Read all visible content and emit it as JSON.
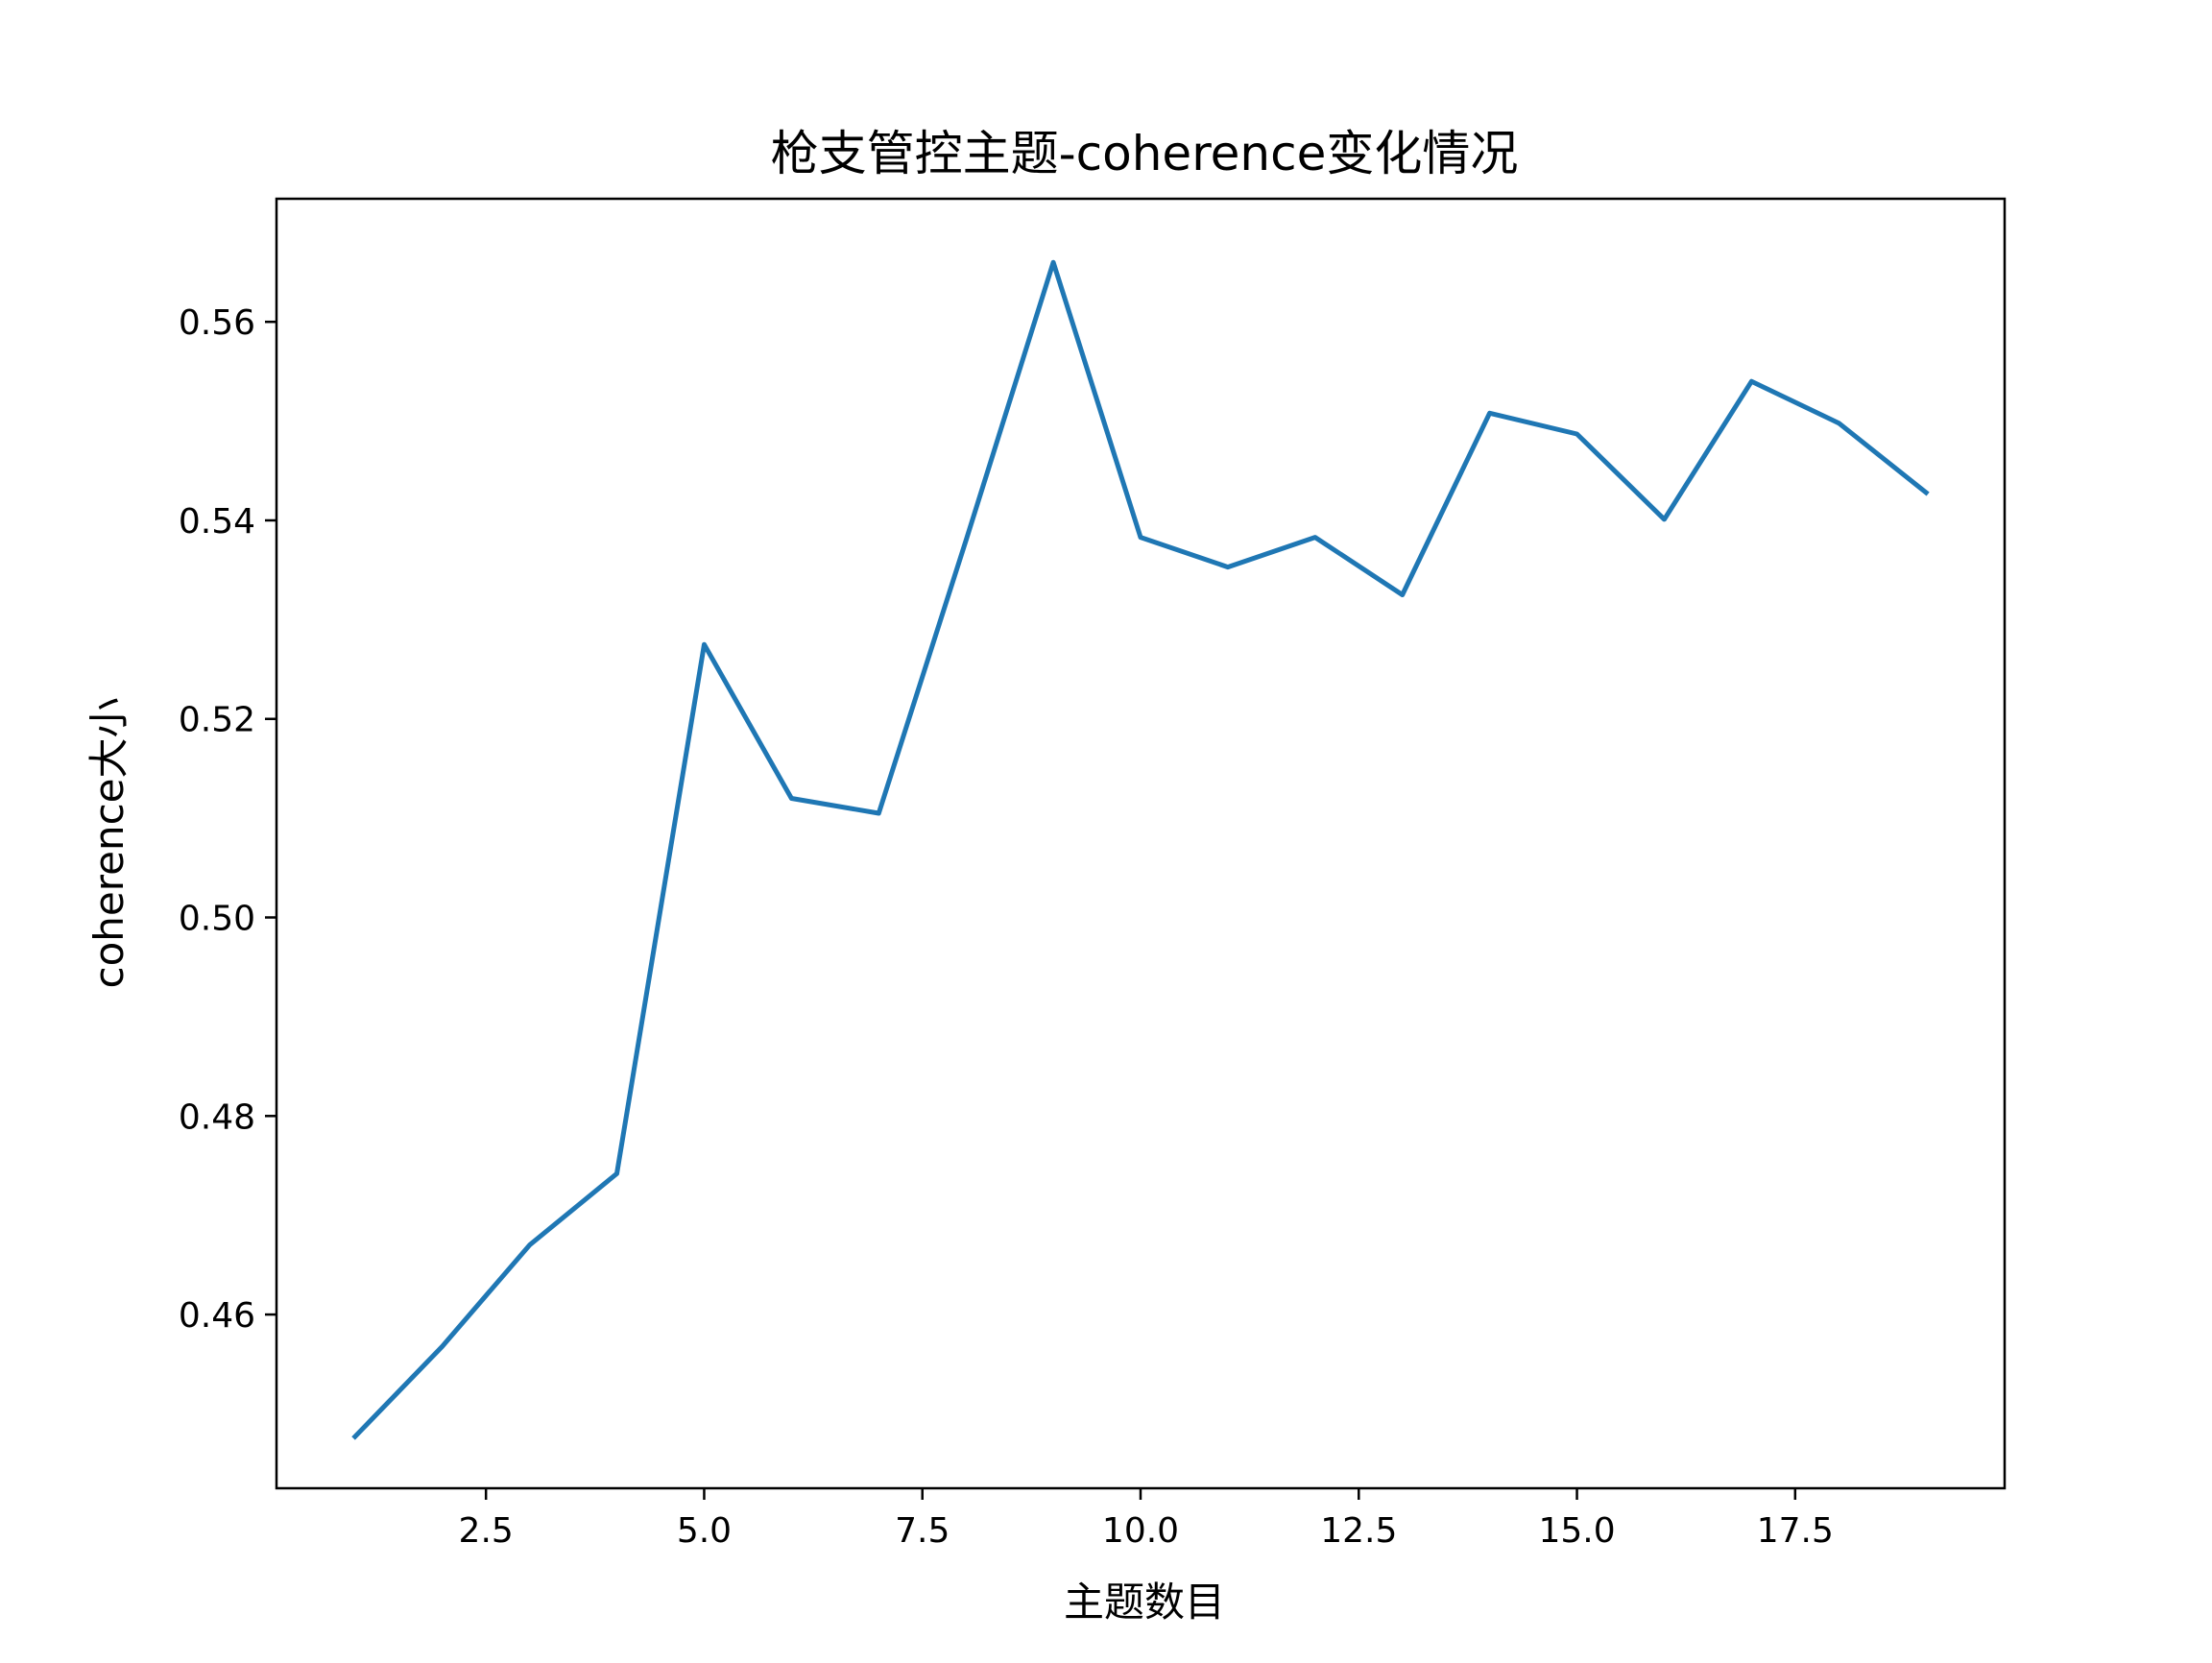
{
  "chart_data": {
    "type": "line",
    "title": "枪支管控主题-coherence变化情况",
    "xlabel": "主题数目",
    "ylabel": "coherence大小",
    "xlim": [
      0.1,
      19.9
    ],
    "ylim": [
      0.4425,
      0.5724
    ],
    "xticks": [
      2.5,
      5.0,
      7.5,
      10.0,
      12.5,
      15.0,
      17.5
    ],
    "xtick_labels": [
      "2.5",
      "5.0",
      "7.5",
      "10.0",
      "12.5",
      "15.0",
      "17.5"
    ],
    "yticks": [
      0.46,
      0.48,
      0.5,
      0.52,
      0.54,
      0.56
    ],
    "ytick_labels": [
      "0.46",
      "0.48",
      "0.50",
      "0.52",
      "0.54",
      "0.56"
    ],
    "grid": false,
    "legend": "none",
    "series": [
      {
        "color": "#1f77b4",
        "x": [
          1,
          2,
          3,
          4,
          5,
          6,
          7,
          8,
          9,
          10,
          11,
          12,
          13,
          14,
          15,
          16,
          17,
          18,
          19
        ],
        "values": [
          0.4477,
          0.4568,
          0.467,
          0.4742,
          0.5275,
          0.512,
          0.5105,
          0.538,
          0.566,
          0.5383,
          0.5353,
          0.5383,
          0.5325,
          0.5508,
          0.5487,
          0.5401,
          0.554,
          0.5498,
          0.5428
        ]
      }
    ]
  }
}
